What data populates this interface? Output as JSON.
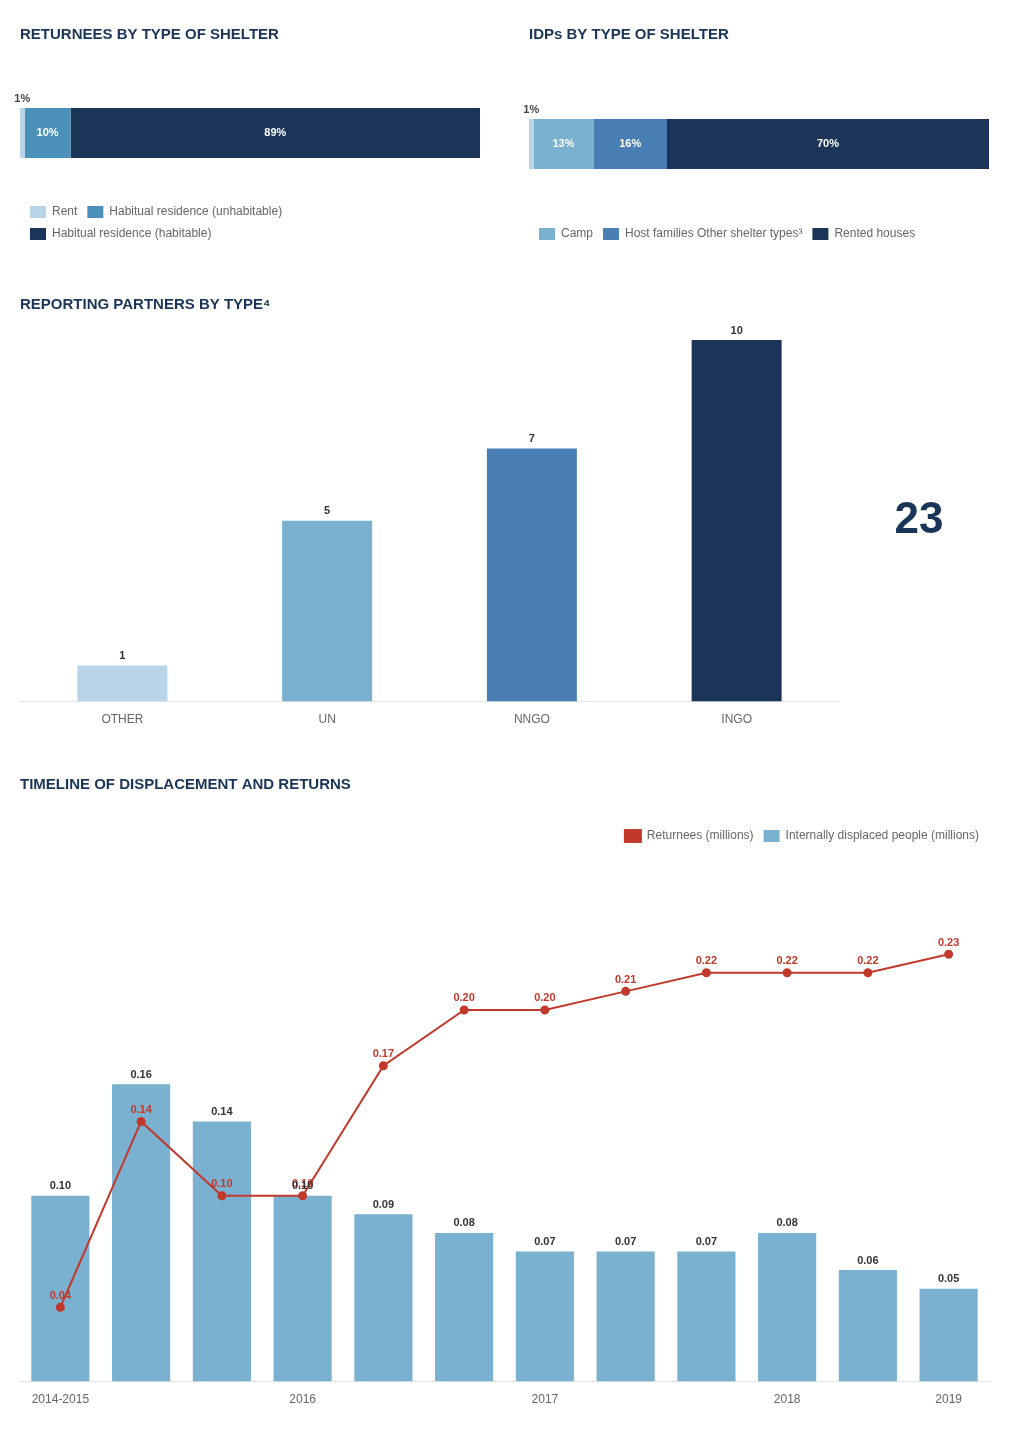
{
  "chart_data": [
    {
      "type": "bar",
      "title": "RETURNEES BY TYPE OF SHELTER",
      "orientation": "horizontal",
      "stacked": true,
      "categories": [
        null
      ],
      "series": [
        {
          "name": "Rent",
          "color": "#b8d4e8",
          "values": [
            1
          ],
          "value_labels": [
            "1%"
          ]
        },
        {
          "name": "Habitual residence\n(unhabitable)",
          "color": "#4a90b8",
          "values": [
            10
          ],
          "value_labels": [
            "10%"
          ]
        },
        {
          "name": "Habitual\nresidence\n(habitable)",
          "color": "#1a3557",
          "values": [
            89
          ],
          "value_labels": [
            "89%"
          ]
        }
      ],
      "xlim": [
        0,
        100
      ],
      "tick_labels": false,
      "grid": false,
      "legend": "bottom",
      "data_labels": true
    },
    {
      "type": "bar",
      "title": "IDPs BY TYPE OF SHELTER",
      "orientation": "horizontal",
      "stacked": true,
      "categories": [
        null
      ],
      "series": [
        {
          "color": "#b8d4e8",
          "values": [
            1
          ],
          "value_labels": [
            "1%"
          ]
        },
        {
          "name": "Camp",
          "color": "#7ab0d0",
          "values": [
            13
          ],
          "value_labels": [
            "13%"
          ]
        },
        {
          "name": "Host families\nOther shelter types³",
          "color": "#4a7fb5",
          "values": [
            16
          ],
          "value_labels": [
            "16%"
          ]
        },
        {
          "name": "Rented houses",
          "color": "#1a3557",
          "values": [
            70
          ],
          "value_labels": [
            "70%"
          ]
        }
      ],
      "xlim": [
        0,
        100
      ],
      "tick_labels": false,
      "grid": false,
      "legend": "bottom",
      "data_labels": true
    },
    {
      "type": "bar",
      "title": "REPORTING PARTNERS BY TYPE⁴",
      "categories": [
        "OTHER",
        "UN",
        "NNGO",
        "INGO"
      ],
      "values": [
        1,
        5,
        7,
        10
      ],
      "colors": [
        "#b8d4e8",
        "#7ab0d0",
        "#4a7fb5",
        "#1a3557"
      ],
      "ylim": [
        0,
        10
      ],
      "tick_labels": "x",
      "grid": false,
      "data_labels": true,
      "annotations": [
        "23"
      ]
    },
    {
      "type": "bar",
      "title": "TIMELINE OF DISPLACEMENT AND RETURNS",
      "categories": [
        "2014-2015",
        null,
        null,
        "2016",
        null,
        null,
        "2017",
        null,
        null,
        "2018",
        null,
        "2019"
      ],
      "series": [
        {
          "name": "Returnees\n(millions)",
          "type": "line",
          "color": "#c0392b",
          "marker": "circle",
          "values": [
            0.04,
            0.14,
            0.1,
            0.1,
            0.17,
            0.2,
            0.2,
            0.21,
            0.22,
            0.22,
            0.22,
            0.23
          ],
          "value_labels": [
            "0.04",
            "0.14",
            "0.10",
            "0.10",
            "0.17",
            "0.20",
            "0.20",
            "0.21",
            "0.22",
            "0.22",
            "0.22",
            "0.23"
          ]
        },
        {
          "name": "Internally displaced people\n(millions)",
          "type": "bar",
          "color": "#7ab0d0",
          "values": [
            0.1,
            0.16,
            0.14,
            0.1,
            0.09,
            0.08,
            0.07,
            0.07,
            0.07,
            0.08,
            0.06,
            0.05
          ],
          "value_labels": [
            "0.10",
            "0.16",
            "0.14",
            "0.10",
            "0.09",
            "0.08",
            "0.07",
            "0.07",
            "0.07",
            "0.08",
            "0.06",
            "0.05"
          ]
        }
      ],
      "ylim": [
        0,
        0.285
      ],
      "tick_labels": "x",
      "grid": false,
      "legend": "upper right",
      "data_labels": true
    }
  ]
}
